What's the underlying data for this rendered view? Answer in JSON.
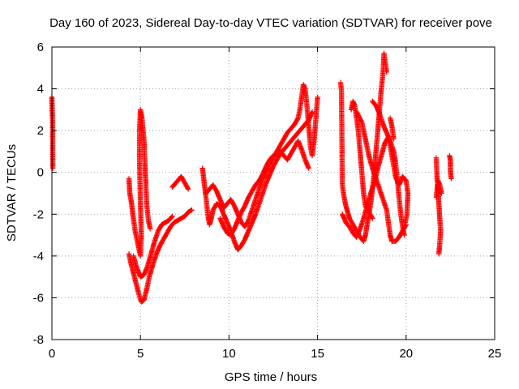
{
  "chart_data": {
    "type": "scatter",
    "title": "Day 160 of 2023, Sidereal Day-to-day VTEC variation (SDTVAR) for receiver pove",
    "xlabel": "GPS time / hours",
    "ylabel": "SDTVAR / TECUs",
    "xlim": [
      0,
      25
    ],
    "ylim": [
      -8,
      6
    ],
    "xticks": [
      "0",
      "5",
      "10",
      "15",
      "20",
      "25"
    ],
    "yticks": [
      "-8",
      "-6",
      "-4",
      "-2",
      "0",
      "2",
      "4",
      "6"
    ],
    "grid": true,
    "marker": "plus",
    "marker_color": "#ff0000",
    "series": [
      {
        "segments": [
          [
            [
              0.0,
              3.6
            ],
            [
              0.02,
              2.9
            ],
            [
              0.04,
              2.5
            ],
            [
              0.05,
              0.2
            ]
          ],
          [
            [
              4.35,
              -0.3
            ],
            [
              4.4,
              -1.0
            ],
            [
              4.5,
              -1.5
            ],
            [
              4.6,
              -2.2
            ],
            [
              4.7,
              -2.8
            ],
            [
              4.8,
              -3.2
            ],
            [
              4.9,
              -3.6
            ],
            [
              5.0,
              -4.0
            ],
            [
              5.05,
              -3.0
            ],
            [
              5.0,
              -1.5
            ],
            [
              4.95,
              0.5
            ],
            [
              4.95,
              2.0
            ],
            [
              5.0,
              3.0
            ],
            [
              5.1,
              2.5
            ],
            [
              5.2,
              1.5
            ],
            [
              5.25,
              0.5
            ],
            [
              5.3,
              -0.5
            ],
            [
              5.35,
              -1.5
            ],
            [
              5.45,
              -2.3
            ],
            [
              5.55,
              -2.7
            ]
          ],
          [
            [
              4.35,
              -3.9
            ],
            [
              4.45,
              -4.3
            ],
            [
              4.6,
              -4.8
            ],
            [
              4.75,
              -5.3
            ],
            [
              4.9,
              -5.8
            ],
            [
              5.05,
              -6.2
            ],
            [
              5.2,
              -6.1
            ],
            [
              5.35,
              -5.6
            ],
            [
              5.5,
              -5.0
            ],
            [
              5.7,
              -4.4
            ],
            [
              5.9,
              -3.9
            ],
            [
              6.1,
              -3.5
            ],
            [
              6.3,
              -3.2
            ],
            [
              6.5,
              -2.9
            ],
            [
              6.7,
              -2.6
            ],
            [
              6.9,
              -2.4
            ],
            [
              7.1,
              -2.3
            ],
            [
              7.3,
              -2.2
            ],
            [
              7.5,
              -2.1
            ],
            [
              7.7,
              -1.9
            ],
            [
              7.9,
              -1.8
            ]
          ],
          [
            [
              4.6,
              -4.0
            ],
            [
              4.8,
              -4.6
            ],
            [
              5.0,
              -5.0
            ],
            [
              5.2,
              -4.9
            ],
            [
              5.4,
              -4.5
            ],
            [
              5.6,
              -3.9
            ],
            [
              5.8,
              -3.3
            ],
            [
              6.0,
              -2.8
            ],
            [
              6.2,
              -2.5
            ],
            [
              6.4,
              -2.4
            ],
            [
              6.6,
              -2.3
            ],
            [
              6.8,
              -2.1
            ]
          ],
          [
            [
              6.8,
              -0.7
            ],
            [
              6.9,
              -0.6
            ],
            [
              7.0,
              -0.5
            ],
            [
              7.3,
              -0.2
            ],
            [
              7.5,
              -0.5
            ],
            [
              7.7,
              -0.8
            ]
          ],
          [
            [
              8.5,
              0.2
            ],
            [
              8.6,
              -0.5
            ],
            [
              8.7,
              -1.2
            ],
            [
              8.8,
              -2.0
            ],
            [
              8.9,
              -2.5
            ],
            [
              9.0,
              -2.2
            ],
            [
              9.1,
              -1.8
            ],
            [
              9.3,
              -1.5
            ],
            [
              9.5,
              -1.6
            ],
            [
              9.7,
              -2.0
            ],
            [
              9.9,
              -2.4
            ],
            [
              10.1,
              -2.8
            ],
            [
              10.3,
              -3.3
            ],
            [
              10.5,
              -3.7
            ],
            [
              10.7,
              -3.5
            ],
            [
              10.9,
              -3.2
            ],
            [
              11.1,
              -2.8
            ],
            [
              11.3,
              -2.4
            ],
            [
              11.5,
              -2.0
            ],
            [
              11.7,
              -1.5
            ],
            [
              11.9,
              -1.0
            ],
            [
              12.1,
              -0.5
            ],
            [
              12.3,
              -0.1
            ],
            [
              12.5,
              0.3
            ],
            [
              12.7,
              0.6
            ],
            [
              12.9,
              0.9
            ],
            [
              13.1,
              1.1
            ],
            [
              13.3,
              1.3
            ],
            [
              13.5,
              1.5
            ],
            [
              13.7,
              1.7
            ],
            [
              13.9,
              1.9
            ],
            [
              14.1,
              2.1
            ],
            [
              14.3,
              2.3
            ],
            [
              14.5,
              2.5
            ],
            [
              14.7,
              2.9
            ]
          ],
          [
            [
              8.7,
              -1.0
            ],
            [
              8.9,
              -0.8
            ],
            [
              9.1,
              -0.6
            ],
            [
              9.3,
              -0.9
            ],
            [
              9.5,
              -1.3
            ],
            [
              9.7,
              -1.7
            ],
            [
              9.9,
              -1.5
            ],
            [
              10.1,
              -1.3
            ],
            [
              10.3,
              -1.6
            ],
            [
              10.5,
              -2.0
            ],
            [
              10.7,
              -2.4
            ],
            [
              10.9,
              -2.6
            ],
            [
              11.1,
              -2.3
            ],
            [
              11.3,
              -1.8
            ],
            [
              11.5,
              -1.3
            ],
            [
              11.7,
              -0.8
            ],
            [
              11.9,
              -0.3
            ],
            [
              12.1,
              0.0
            ],
            [
              12.3,
              0.4
            ],
            [
              12.5,
              0.7
            ],
            [
              12.7,
              1.0
            ],
            [
              12.9,
              1.3
            ],
            [
              13.1,
              1.6
            ],
            [
              13.3,
              1.9
            ],
            [
              13.5,
              2.1
            ],
            [
              13.7,
              2.3
            ],
            [
              13.9,
              2.6
            ],
            [
              14.0,
              3.0
            ],
            [
              14.1,
              3.6
            ],
            [
              14.2,
              4.2
            ],
            [
              14.3,
              4.0
            ],
            [
              14.4,
              3.2
            ],
            [
              14.5,
              2.2
            ],
            [
              14.6,
              1.2
            ],
            [
              14.7,
              0.8
            ],
            [
              14.8,
              1.5
            ],
            [
              14.9,
              2.5
            ],
            [
              15.0,
              3.6
            ]
          ],
          [
            [
              9.5,
              -2.2
            ],
            [
              9.7,
              -2.6
            ],
            [
              9.9,
              -2.9
            ],
            [
              10.1,
              -3.0
            ],
            [
              10.3,
              -2.7
            ],
            [
              10.5,
              -2.3
            ],
            [
              10.7,
              -1.9
            ],
            [
              10.9,
              -1.6
            ],
            [
              11.1,
              -1.2
            ],
            [
              11.3,
              -0.9
            ],
            [
              11.5,
              -0.6
            ],
            [
              11.7,
              -0.4
            ],
            [
              11.9,
              -0.1
            ],
            [
              12.1,
              0.3
            ],
            [
              12.3,
              0.6
            ],
            [
              12.5,
              0.8
            ],
            [
              12.7,
              0.9
            ],
            [
              12.9,
              1.0
            ],
            [
              13.1,
              0.8
            ],
            [
              13.3,
              0.6
            ],
            [
              13.5,
              0.9
            ],
            [
              13.7,
              1.2
            ],
            [
              13.9,
              1.5
            ],
            [
              14.1,
              1.1
            ],
            [
              14.3,
              0.6
            ],
            [
              14.5,
              0.2
            ]
          ],
          [
            [
              16.3,
              4.3
            ],
            [
              16.35,
              3.9
            ],
            [
              16.4,
              -0.6
            ],
            [
              16.5,
              -1.2
            ],
            [
              16.6,
              -1.6
            ],
            [
              16.7,
              -1.9
            ],
            [
              16.8,
              -2.2
            ],
            [
              17.0,
              -2.5
            ],
            [
              17.2,
              -2.8
            ],
            [
              17.4,
              -3.1
            ],
            [
              17.6,
              -3.3
            ],
            [
              17.7,
              -3.0
            ],
            [
              17.8,
              -2.5
            ],
            [
              17.9,
              -2.0
            ],
            [
              18.0,
              -1.5
            ],
            [
              18.1,
              -0.8
            ],
            [
              18.2,
              0.0
            ],
            [
              18.3,
              1.0
            ],
            [
              18.4,
              2.0
            ],
            [
              18.5,
              3.0
            ],
            [
              18.6,
              4.0
            ],
            [
              18.7,
              4.8
            ],
            [
              18.75,
              5.7
            ],
            [
              18.8,
              5.4
            ],
            [
              18.9,
              4.8
            ]
          ],
          [
            [
              16.4,
              -2.0
            ],
            [
              16.6,
              -2.4
            ],
            [
              16.8,
              -2.6
            ],
            [
              17.0,
              -2.9
            ],
            [
              17.2,
              -3.1
            ],
            [
              17.4,
              -2.7
            ],
            [
              17.6,
              -2.2
            ],
            [
              17.8,
              -1.6
            ],
            [
              18.0,
              -1.0
            ],
            [
              18.2,
              -0.5
            ],
            [
              18.4,
              0.2
            ],
            [
              18.6,
              0.8
            ],
            [
              18.8,
              1.4
            ],
            [
              19.0,
              1.7
            ],
            [
              19.2,
              0.8
            ],
            [
              19.4,
              -0.2
            ],
            [
              19.6,
              -0.6
            ],
            [
              19.8,
              -0.2
            ],
            [
              20.0,
              -0.4
            ],
            [
              20.1,
              -1.0
            ],
            [
              20.05,
              -2.0
            ],
            [
              19.95,
              -2.4
            ]
          ],
          [
            [
              16.9,
              3.0
            ],
            [
              17.0,
              3.4
            ],
            [
              17.1,
              3.2
            ],
            [
              17.2,
              2.6
            ],
            [
              17.3,
              2.0
            ],
            [
              17.4,
              1.0
            ],
            [
              17.5,
              0.0
            ],
            [
              17.6,
              -1.0
            ],
            [
              17.7,
              -1.6
            ],
            [
              17.9,
              -1.9
            ],
            [
              18.1,
              -2.2
            ]
          ],
          [
            [
              17.2,
              2.9
            ],
            [
              17.5,
              2.4
            ],
            [
              17.7,
              1.6
            ],
            [
              17.9,
              0.8
            ],
            [
              18.1,
              0.2
            ],
            [
              18.3,
              -0.3
            ],
            [
              18.5,
              -0.8
            ],
            [
              18.7,
              -1.3
            ],
            [
              18.9,
              -1.8
            ],
            [
              19.0,
              -2.4
            ],
            [
              19.1,
              -3.0
            ],
            [
              19.2,
              -3.3
            ],
            [
              19.4,
              -3.3
            ],
            [
              19.6,
              -3.1
            ],
            [
              19.8,
              -2.8
            ],
            [
              20.0,
              -2.5
            ]
          ],
          [
            [
              18.1,
              3.4
            ],
            [
              18.3,
              3.2
            ],
            [
              18.5,
              2.8
            ],
            [
              18.7,
              2.3
            ],
            [
              18.9,
              1.9
            ],
            [
              19.1,
              1.5
            ],
            [
              19.3,
              1.0
            ],
            [
              19.4,
              0.5
            ],
            [
              19.5,
              -0.3
            ],
            [
              19.6,
              -1.2
            ],
            [
              19.7,
              -2.0
            ],
            [
              19.8,
              -2.6
            ],
            [
              19.9,
              -3.0
            ]
          ],
          [
            [
              19.1,
              2.6
            ],
            [
              19.2,
              2.2
            ],
            [
              19.3,
              1.6
            ]
          ],
          [
            [
              21.7,
              0.7
            ],
            [
              21.75,
              -0.3
            ],
            [
              21.8,
              -0.8
            ],
            [
              21.85,
              -1.5
            ],
            [
              21.9,
              -2.2
            ],
            [
              21.95,
              -2.8
            ],
            [
              21.9,
              -3.4
            ],
            [
              21.85,
              -3.9
            ]
          ],
          [
            [
              21.7,
              -1.2
            ],
            [
              21.8,
              -0.4
            ],
            [
              21.9,
              -0.6
            ],
            [
              22.0,
              -1.0
            ]
          ],
          [
            [
              22.45,
              0.8
            ],
            [
              22.5,
              0.6
            ],
            [
              22.5,
              0.1
            ],
            [
              22.55,
              -0.3
            ]
          ]
        ]
      }
    ]
  }
}
